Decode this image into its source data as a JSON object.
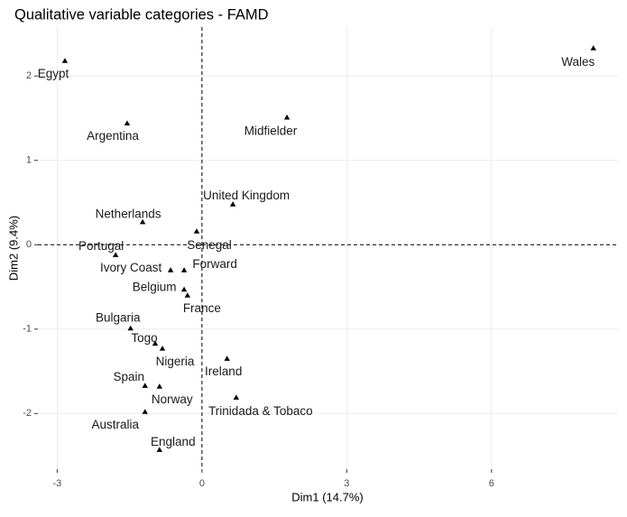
{
  "chart_data": {
    "type": "scatter",
    "title": "Qualitative variable categories - FAMD",
    "x_label": "Dim1 (14.7%)",
    "y_label": "Dim2 (9.4%)",
    "labels": [
      "Egypt",
      "Wales",
      "Argentina",
      "Midfielder",
      "United Kingdom",
      "Netherlands",
      "Senegal",
      "Portugal",
      "Ivory Coast",
      "Forward",
      "Belgium",
      "France",
      "Bulgaria",
      "Togo",
      "Nigeria",
      "Ireland",
      "Spain",
      "Norway",
      "Trinidada & Tobaco",
      "Australia",
      "England"
    ],
    "x": [
      -2.84,
      8.11,
      -1.55,
      1.76,
      0.64,
      -1.23,
      -0.11,
      -1.79,
      -0.65,
      -0.37,
      -0.37,
      -0.3,
      -1.48,
      -0.97,
      -0.82,
      0.52,
      -1.18,
      -0.88,
      0.71,
      -1.18,
      -0.88
    ],
    "y": [
      2.18,
      2.33,
      1.44,
      1.51,
      0.48,
      0.27,
      0.16,
      -0.12,
      -0.3,
      -0.3,
      -0.53,
      -0.6,
      -0.99,
      -1.17,
      -1.23,
      -1.35,
      -1.67,
      -1.68,
      -1.81,
      -1.98,
      -2.43
    ],
    "color": "#000000",
    "xlim": [
      -3.4,
      8.62
    ],
    "ylim": [
      -2.66,
      2.58
    ],
    "xticks": [
      -3,
      0,
      3,
      6
    ],
    "yticks": [
      -2,
      -1,
      0,
      1,
      2
    ],
    "grid": true,
    "reference_lines": {
      "x": 0,
      "y": 0
    }
  }
}
